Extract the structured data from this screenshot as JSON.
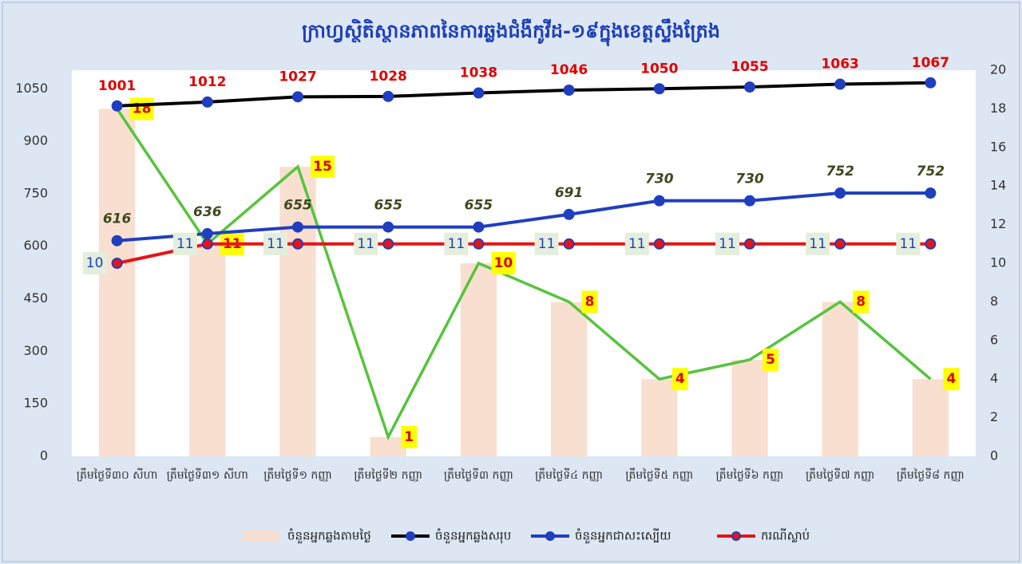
{
  "chart_data": {
    "type": "combo",
    "title": "ក្រាហ្វស្ថិតិស្ថានភាពនៃការឆ្លងជំងឺកូវីដ-១៩ក្នុងខេត្តស្ទឹងត្រែង",
    "categories": [
      "ត្រឹមថ្ងៃទី៣០ សីហា",
      "ត្រឹមថ្ងៃទី៣១ សីហា",
      "ត្រឹមថ្ងៃទី១ កញ្ញា",
      "ត្រឹមថ្ងៃទី២ កញ្ញា",
      "ត្រឹមថ្ងៃទី៣ កញ្ញា",
      "ត្រឹមថ្ងៃទី៤ កញ្ញា",
      "ត្រឹមថ្ងៃទី៥ កញ្ញា",
      "ត្រឹមថ្ងៃទី៦ កញ្ញា",
      "ត្រឹមថ្ងៃទី៧ កញ្ញា",
      "ត្រឹមថ្ងៃទី៨ កញ្ញា"
    ],
    "ylim": [
      0,
      1103
    ],
    "yticks": [
      0,
      150,
      300,
      450,
      600,
      750,
      900,
      1050
    ],
    "y2lim": [
      0,
      20
    ],
    "y2ticks": [
      0,
      2,
      4,
      6,
      8,
      10,
      12,
      14,
      16,
      18,
      20
    ],
    "grid": false,
    "legend": "bottom",
    "series": [
      {
        "name": "ចំនួនអ្នកឆ្លងតាមថ្ងៃ",
        "kind": "bar",
        "axis": "y2",
        "color": "#f9dfd0",
        "line_color": "#55c43c",
        "values": [
          18,
          11,
          15,
          1,
          10,
          8,
          4,
          5,
          8,
          4
        ]
      },
      {
        "name": "ចំនួនអ្នកឆ្លងសរុប",
        "kind": "line",
        "color": "#000000",
        "marker_color": "#1f3fbf",
        "values": [
          1001,
          1012,
          1027,
          1028,
          1038,
          1046,
          1050,
          1055,
          1063,
          1067
        ]
      },
      {
        "name": "ចំនួនអ្នកជាសះស្បើយ",
        "kind": "line",
        "color": "#1f3fbf",
        "marker_color": "#1f3fbf",
        "values": [
          616,
          636,
          655,
          655,
          655,
          691,
          730,
          730,
          752,
          752
        ]
      },
      {
        "name": "ករណីស្លាប់",
        "kind": "line",
        "axis": "y2",
        "color": "#e81414",
        "marker_color": "#e81414",
        "values": [
          10,
          11,
          11,
          11,
          11,
          11,
          11,
          11,
          11,
          11
        ]
      }
    ]
  }
}
